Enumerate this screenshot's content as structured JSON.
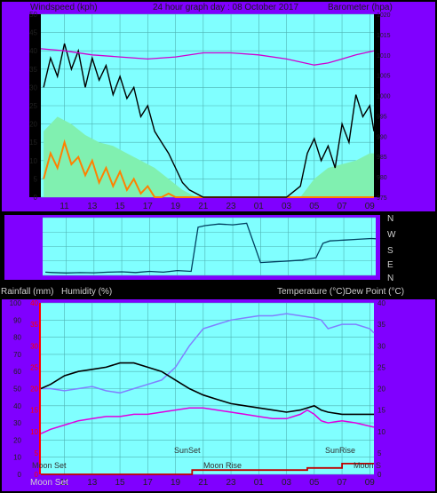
{
  "colors": {
    "background": "#000000",
    "frame": "#8000FF",
    "plot_bg": "#80FFFF",
    "grid": "#4FB3B3",
    "text_light": "#D0D0D0",
    "wind_speed": "#000000",
    "gust_fill": "#80F0B0",
    "wind_orange": "#FF8000",
    "barometer": "#D000D0",
    "direction": "#004060",
    "temperature": "#000000",
    "humidity": "#8080FF",
    "dew_point": "#E000E0",
    "rainfall": "#C00000",
    "rain_axis": "#FF0000"
  },
  "top": {
    "title": "24 hour graph day : 08 October 2017",
    "left_label": "Windspeed (kph)",
    "right_label": "Barometer (hpa)"
  },
  "direction_labels": [
    "N",
    "W",
    "S",
    "E",
    "N"
  ],
  "bottom": {
    "left_label_1": "Rainfall (mm)",
    "left_label_2": "Humidity (%)",
    "right_label": "Temperature (°C)Dew Point (°C)",
    "sunset": "SunSet",
    "sunrise": "SunRise",
    "moon_set": "Moon Set",
    "moon_rise": "Moon Rise",
    "moon_set_bottom": "Moon Set",
    "moon_right": "Moon S"
  },
  "chart_data": [
    {
      "type": "line",
      "title": "24 hour graph day : 08 October 2017",
      "x_ticks": [
        "11",
        "13",
        "15",
        "17",
        "19",
        "21",
        "23",
        "01",
        "03",
        "05",
        "07",
        "09"
      ],
      "x_range_hours": [
        9.3,
        33.3
      ],
      "ylabel": "Windspeed (kph)",
      "y2label": "Barometer (hpa)",
      "ylim": [
        0,
        50
      ],
      "y_ticks": [
        0,
        5,
        10,
        15,
        20,
        25,
        30,
        35,
        40,
        45,
        50
      ],
      "y2lim": [
        975,
        1020
      ],
      "y2_ticks": [
        975,
        980,
        985,
        990,
        995,
        1000,
        1005,
        1010,
        1015,
        1020
      ],
      "series": [
        {
          "axis": "left",
          "points": [
            [
              9.5,
              30
            ],
            [
              10,
              38
            ],
            [
              10.5,
              33
            ],
            [
              11,
              42
            ],
            [
              11.5,
              35
            ],
            [
              12,
              40
            ],
            [
              12.5,
              30
            ],
            [
              13,
              38
            ],
            [
              13.5,
              32
            ],
            [
              14,
              36
            ],
            [
              14.5,
              28
            ],
            [
              15,
              33
            ],
            [
              15.5,
              27
            ],
            [
              16,
              30
            ],
            [
              16.5,
              22
            ],
            [
              17,
              25
            ],
            [
              17.5,
              18
            ],
            [
              18,
              15
            ],
            [
              18.5,
              12
            ],
            [
              19,
              8
            ],
            [
              19.5,
              4
            ],
            [
              20,
              2
            ],
            [
              20.5,
              1
            ],
            [
              21,
              0
            ],
            [
              22,
              0
            ],
            [
              23,
              0
            ],
            [
              24,
              0
            ],
            [
              25,
              0
            ],
            [
              26,
              0
            ],
            [
              27,
              0
            ],
            [
              28,
              3
            ],
            [
              28.5,
              12
            ],
            [
              29,
              16
            ],
            [
              29.5,
              10
            ],
            [
              30,
              14
            ],
            [
              30.5,
              8
            ],
            [
              31,
              20
            ],
            [
              31.5,
              15
            ],
            [
              32,
              28
            ],
            [
              32.5,
              22
            ],
            [
              33,
              25
            ],
            [
              33.3,
              18
            ]
          ]
        },
        {
          "axis": "left",
          "points": [
            [
              9.5,
              18
            ],
            [
              10.5,
              22
            ],
            [
              11.5,
              20
            ],
            [
              12.5,
              17
            ],
            [
              13.5,
              15
            ],
            [
              14.5,
              14
            ],
            [
              15.5,
              12
            ],
            [
              16.5,
              10
            ],
            [
              17.5,
              8
            ],
            [
              18.5,
              5
            ],
            [
              19.5,
              2
            ],
            [
              20.5,
              0
            ],
            [
              28,
              0
            ],
            [
              29,
              5
            ],
            [
              30,
              8
            ],
            [
              31,
              9
            ],
            [
              32,
              10
            ],
            [
              33,
              12
            ],
            [
              33.3,
              12
            ]
          ]
        },
        {
          "axis": "left",
          "points": [
            [
              9.5,
              5
            ],
            [
              10,
              12
            ],
            [
              10.5,
              8
            ],
            [
              11,
              15
            ],
            [
              11.5,
              9
            ],
            [
              12,
              11
            ],
            [
              12.5,
              6
            ],
            [
              13,
              10
            ],
            [
              13.5,
              4
            ],
            [
              14,
              8
            ],
            [
              14.5,
              3
            ],
            [
              15,
              7
            ],
            [
              15.5,
              2
            ],
            [
              16,
              5
            ],
            [
              16.5,
              1
            ],
            [
              17,
              3
            ],
            [
              17.5,
              0
            ],
            [
              18,
              0
            ],
            [
              18.5,
              1
            ],
            [
              19,
              0
            ],
            [
              19.5,
              0
            ],
            [
              20,
              0
            ],
            [
              33.3,
              0
            ]
          ]
        },
        {
          "axis": "right",
          "points": [
            [
              9.3,
              1011.5
            ],
            [
              11,
              1011
            ],
            [
              13,
              1010
            ],
            [
              15,
              1009.5
            ],
            [
              17,
              1009
            ],
            [
              19,
              1009.5
            ],
            [
              21,
              1010.5
            ],
            [
              23,
              1010.5
            ],
            [
              25,
              1010
            ],
            [
              27,
              1009
            ],
            [
              29,
              1007.5
            ],
            [
              30,
              1008
            ],
            [
              31,
              1009
            ],
            [
              32,
              1010
            ],
            [
              33.3,
              1011
            ]
          ]
        }
      ]
    },
    {
      "type": "line",
      "x_range_hours": [
        9.3,
        33.3
      ],
      "y_ticks": [
        "N",
        "W",
        "S",
        "E",
        "N"
      ],
      "ylim": [
        0,
        360
      ],
      "series": [
        {
          "points": [
            [
              9.5,
              20
            ],
            [
              10,
              18
            ],
            [
              11,
              15
            ],
            [
              12,
              17
            ],
            [
              13,
              16
            ],
            [
              14,
              20
            ],
            [
              15,
              22
            ],
            [
              16,
              18
            ],
            [
              17,
              25
            ],
            [
              18,
              20
            ],
            [
              19,
              30
            ],
            [
              20,
              25
            ],
            [
              20.5,
              300
            ],
            [
              21,
              310
            ],
            [
              22,
              320
            ],
            [
              23,
              315
            ],
            [
              24,
              325
            ],
            [
              25,
              80
            ],
            [
              26,
              85
            ],
            [
              27,
              90
            ],
            [
              28,
              95
            ],
            [
              29,
              110
            ],
            [
              29.5,
              200
            ],
            [
              30,
              215
            ],
            [
              31,
              220
            ],
            [
              32,
              225
            ],
            [
              33,
              230
            ],
            [
              33.3,
              228
            ]
          ]
        }
      ]
    },
    {
      "type": "line",
      "x_ticks": [
        "11",
        "13",
        "15",
        "17",
        "19",
        "21",
        "23",
        "01",
        "03",
        "05",
        "07",
        "09"
      ],
      "x_range_hours": [
        9.3,
        33.3
      ],
      "ylabel": "Humidity (%)",
      "ylim": [
        0,
        100
      ],
      "y_ticks": [
        0,
        10,
        20,
        30,
        40,
        50,
        60,
        70,
        80,
        90,
        100
      ],
      "y2label": "Temperature (°C)Dew Point (°C)",
      "y2lim": [
        0,
        40
      ],
      "y2_ticks": [
        0,
        5,
        10,
        15,
        20,
        25,
        30,
        35,
        40
      ],
      "rain_axis_ticks": [
        0,
        5,
        10,
        15,
        20,
        25,
        30,
        35,
        40
      ],
      "series": [
        {
          "axis": "right",
          "points": [
            [
              9.3,
              20
            ],
            [
              10,
              21
            ],
            [
              11,
              23
            ],
            [
              12,
              24
            ],
            [
              13,
              24.5
            ],
            [
              14,
              25
            ],
            [
              15,
              26
            ],
            [
              16,
              26
            ],
            [
              17,
              25
            ],
            [
              18,
              24
            ],
            [
              19,
              22
            ],
            [
              20,
              20
            ],
            [
              21,
              18.5
            ],
            [
              22,
              17.5
            ],
            [
              23,
              16.5
            ],
            [
              24,
              16
            ],
            [
              25,
              15.5
            ],
            [
              26,
              15
            ],
            [
              27,
              14.5
            ],
            [
              28,
              15
            ],
            [
              29,
              16
            ],
            [
              29.5,
              15
            ],
            [
              30,
              14.5
            ],
            [
              31,
              14
            ],
            [
              32,
              14
            ],
            [
              33.3,
              14
            ]
          ]
        },
        {
          "axis": "right",
          "points": [
            [
              9.3,
              20
            ],
            [
              10,
              20
            ],
            [
              11,
              19.5
            ],
            [
              12,
              20
            ],
            [
              13,
              20.5
            ],
            [
              14,
              19.5
            ],
            [
              15,
              19
            ],
            [
              16,
              20
            ],
            [
              17,
              21
            ],
            [
              18,
              22
            ],
            [
              19,
              25
            ],
            [
              20,
              30
            ],
            [
              21,
              34
            ],
            [
              22,
              35
            ],
            [
              23,
              36
            ],
            [
              24,
              36.5
            ],
            [
              25,
              37
            ],
            [
              26,
              37
            ],
            [
              27,
              37.5
            ],
            [
              28,
              37
            ],
            [
              29,
              36.5
            ],
            [
              29.5,
              36
            ],
            [
              30,
              34
            ],
            [
              31,
              35
            ],
            [
              32,
              35
            ],
            [
              33,
              34
            ],
            [
              33.3,
              33
            ]
          ]
        },
        {
          "axis": "right",
          "points": [
            [
              9.3,
              9.5
            ],
            [
              10,
              10.5
            ],
            [
              11,
              11.5
            ],
            [
              12,
              12.5
            ],
            [
              13,
              13
            ],
            [
              14,
              13.5
            ],
            [
              15,
              13.5
            ],
            [
              16,
              14
            ],
            [
              17,
              14
            ],
            [
              18,
              14.5
            ],
            [
              19,
              15
            ],
            [
              20,
              15.5
            ],
            [
              21,
              15.5
            ],
            [
              22,
              15
            ],
            [
              23,
              14.5
            ],
            [
              24,
              14
            ],
            [
              25,
              13.5
            ],
            [
              26,
              13
            ],
            [
              27,
              13
            ],
            [
              28,
              14
            ],
            [
              28.5,
              15
            ],
            [
              29,
              14
            ],
            [
              29.5,
              12.5
            ],
            [
              30,
              12
            ],
            [
              31,
              12.5
            ],
            [
              32,
              12
            ],
            [
              33.3,
              11
            ]
          ]
        },
        {
          "axis": "rain",
          "points": [
            [
              9.3,
              0
            ],
            [
              20.2,
              0
            ],
            [
              20.2,
              1
            ],
            [
              25,
              1
            ],
            [
              28.5,
              1
            ],
            [
              28.5,
              1.5
            ],
            [
              31,
              1.5
            ],
            [
              31,
              2.5
            ],
            [
              33.3,
              2.5
            ]
          ]
        }
      ]
    }
  ]
}
